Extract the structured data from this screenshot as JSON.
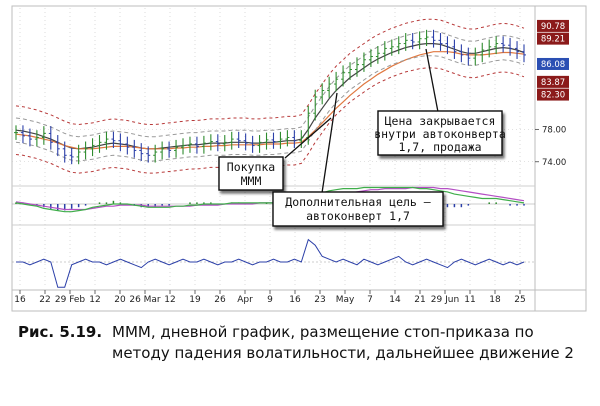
{
  "chart_data": {
    "type": "candlestick",
    "x_tick_labels": [
      "16",
      "22",
      "29 Feb",
      "12",
      "20",
      "26 Mar",
      "12",
      "19",
      "26",
      "Apr",
      "9",
      "16",
      "23",
      "May",
      "7",
      "14",
      "21",
      "29 Jun",
      "11",
      "18",
      "25"
    ],
    "price_axis": {
      "range": [
        71.5,
        92.5
      ],
      "tick_labels": [
        "78.00",
        "74.00"
      ],
      "tick_values": [
        78.0,
        74.0
      ],
      "boxed_values": [
        {
          "text": "90.78",
          "value": 90.78,
          "color": "#8b1a1a"
        },
        {
          "text": "89.21",
          "value": 89.21,
          "color": "#8b1a1a"
        },
        {
          "text": "86.08",
          "value": 86.08,
          "color": "#2b4fb3"
        },
        {
          "text": "83.87",
          "value": 83.87,
          "color": "#8b1a1a"
        },
        {
          "text": "82.30",
          "value": 82.3,
          "color": "#8b1a1a"
        }
      ]
    },
    "price_closes": [
      77.6,
      77.2,
      76.8,
      77.0,
      77.5,
      76.4,
      75.6,
      74.8,
      74.6,
      75.2,
      75.6,
      76.0,
      76.4,
      76.8,
      76.6,
      76.2,
      75.8,
      75.4,
      75.0,
      74.8,
      75.2,
      75.6,
      75.4,
      75.8,
      76.0,
      76.2,
      75.9,
      76.3,
      76.5,
      76.2,
      76.4,
      76.8,
      76.6,
      76.3,
      76.0,
      76.4,
      76.7,
      76.5,
      76.8,
      77.0,
      76.6,
      77.0,
      80.0,
      82.0,
      82.8,
      83.6,
      84.2,
      85.0,
      85.4,
      86.0,
      86.6,
      87.0,
      87.4,
      88.0,
      88.2,
      88.6,
      89.0,
      88.8,
      89.2,
      89.4,
      89.0,
      88.6,
      88.2,
      87.6,
      87.2,
      86.8,
      87.2,
      87.8,
      88.2,
      88.6,
      88.4,
      88.0,
      87.6,
      87.2
    ],
    "series": [
      {
        "name": "",
        "color": "#444444",
        "values": [
          77.9,
          77.8,
          77.6,
          77.4,
          77.1,
          76.8,
          76.4,
          76.0,
          75.7,
          75.6,
          75.7,
          75.8,
          76.0,
          76.2,
          76.3,
          76.2,
          76.1,
          75.9,
          75.7,
          75.6,
          75.6,
          75.7,
          75.8,
          75.9,
          76.0,
          76.1,
          76.1,
          76.2,
          76.3,
          76.3,
          76.3,
          76.4,
          76.4,
          76.4,
          76.3,
          76.3,
          76.4,
          76.4,
          76.5,
          76.6,
          76.6,
          76.8,
          78.0,
          79.4,
          80.6,
          81.8,
          82.8,
          83.6,
          84.4,
          85.0,
          85.6,
          86.2,
          86.7,
          87.1,
          87.5,
          87.8,
          88.1,
          88.3,
          88.5,
          88.6,
          88.6,
          88.5,
          88.2,
          87.9,
          87.6,
          87.4,
          87.4,
          87.6,
          87.8,
          88.0,
          88.1,
          88.0,
          87.8,
          87.5
        ]
      },
      {
        "name": "",
        "color": "#e07840",
        "values": [
          77.4,
          77.3,
          77.2,
          77.0,
          76.8,
          76.6,
          76.3,
          76.0,
          75.8,
          75.6,
          75.6,
          75.6,
          75.7,
          75.8,
          75.9,
          75.9,
          75.9,
          75.8,
          75.7,
          75.6,
          75.6,
          75.6,
          75.6,
          75.7,
          75.7,
          75.8,
          75.8,
          75.9,
          75.9,
          76.0,
          76.0,
          76.1,
          76.1,
          76.1,
          76.1,
          76.1,
          76.2,
          76.2,
          76.2,
          76.3,
          76.3,
          76.4,
          77.1,
          77.9,
          78.8,
          79.7,
          80.6,
          81.4,
          82.2,
          82.9,
          83.6,
          84.2,
          84.8,
          85.3,
          85.8,
          86.2,
          86.6,
          86.9,
          87.2,
          87.4,
          87.6,
          87.6,
          87.6,
          87.5,
          87.3,
          87.2,
          87.2,
          87.2,
          87.3,
          87.4,
          87.5,
          87.5,
          87.4,
          87.3
        ]
      },
      {
        "name": "",
        "color": "#9a9a9a",
        "values": [
          79.4,
          79.3,
          79.1,
          78.9,
          78.6,
          78.3,
          77.9,
          77.5,
          77.2,
          77.1,
          77.2,
          77.3,
          77.5,
          77.7,
          77.8,
          77.7,
          77.6,
          77.4,
          77.2,
          77.1,
          77.1,
          77.2,
          77.3,
          77.4,
          77.5,
          77.6,
          77.6,
          77.7,
          77.8,
          77.8,
          77.8,
          77.9,
          77.9,
          77.9,
          77.8,
          77.8,
          77.9,
          77.9,
          78.0,
          78.1,
          78.1,
          78.3,
          79.5,
          80.9,
          82.1,
          83.3,
          84.3,
          85.1,
          85.9,
          86.5,
          87.1,
          87.7,
          88.2,
          88.6,
          89.0,
          89.3,
          89.6,
          89.8,
          90.0,
          90.1,
          90.1,
          90.0,
          89.7,
          89.4,
          89.1,
          88.9,
          88.9,
          89.1,
          89.3,
          89.5,
          89.6,
          89.5,
          89.3,
          89.0
        ]
      },
      {
        "name": "",
        "color": "#9a9a9a",
        "values": [
          76.4,
          76.3,
          76.1,
          75.9,
          75.6,
          75.3,
          74.9,
          74.5,
          74.2,
          74.1,
          74.2,
          74.3,
          74.5,
          74.7,
          74.8,
          74.7,
          74.6,
          74.4,
          74.2,
          74.1,
          74.1,
          74.2,
          74.3,
          74.4,
          74.5,
          74.6,
          74.6,
          74.7,
          74.8,
          74.8,
          74.8,
          74.9,
          74.9,
          74.9,
          74.8,
          74.8,
          74.9,
          74.9,
          75.0,
          75.1,
          75.1,
          75.3,
          76.5,
          77.9,
          79.1,
          80.3,
          81.3,
          82.1,
          82.9,
          83.5,
          84.1,
          84.7,
          85.2,
          85.6,
          86.0,
          86.3,
          86.6,
          86.8,
          87.0,
          87.1,
          87.1,
          87.0,
          86.7,
          86.4,
          86.1,
          85.9,
          85.9,
          86.1,
          86.3,
          86.5,
          86.6,
          86.5,
          86.3,
          86.0
        ]
      },
      {
        "name": "",
        "color": "#b83a3a",
        "values": [
          80.9,
          80.8,
          80.6,
          80.4,
          80.1,
          79.8,
          79.4,
          79.0,
          78.7,
          78.6,
          78.7,
          78.8,
          79.0,
          79.2,
          79.3,
          79.2,
          79.1,
          78.9,
          78.7,
          78.6,
          78.6,
          78.7,
          78.8,
          78.9,
          79.0,
          79.1,
          79.1,
          79.2,
          79.3,
          79.3,
          79.3,
          79.4,
          79.4,
          79.4,
          79.3,
          79.3,
          79.4,
          79.4,
          79.5,
          79.6,
          79.6,
          79.8,
          81.0,
          82.4,
          83.6,
          84.8,
          85.8,
          86.6,
          87.4,
          88.0,
          88.6,
          89.2,
          89.7,
          90.1,
          90.5,
          90.8,
          91.1,
          91.3,
          91.5,
          91.6,
          91.6,
          91.5,
          91.2,
          90.9,
          90.6,
          90.4,
          90.4,
          90.6,
          90.8,
          91.0,
          91.1,
          91.0,
          90.8,
          90.5
        ]
      },
      {
        "name": "",
        "color": "#b83a3a",
        "values": [
          74.9,
          74.8,
          74.6,
          74.4,
          74.1,
          73.8,
          73.4,
          73.0,
          72.7,
          72.6,
          72.7,
          72.8,
          73.0,
          73.2,
          73.3,
          73.2,
          73.1,
          72.9,
          72.7,
          72.6,
          72.6,
          72.7,
          72.8,
          72.9,
          73.0,
          73.1,
          73.1,
          73.2,
          73.3,
          73.3,
          73.3,
          73.4,
          73.4,
          73.4,
          73.3,
          73.3,
          73.4,
          73.4,
          73.5,
          73.6,
          73.6,
          73.8,
          75.0,
          76.4,
          77.6,
          78.8,
          79.8,
          80.6,
          81.4,
          82.0,
          82.6,
          83.2,
          83.7,
          84.1,
          84.5,
          84.8,
          85.1,
          85.3,
          85.5,
          85.6,
          85.6,
          85.5,
          85.2,
          84.9,
          84.6,
          84.4,
          84.4,
          84.6,
          84.8,
          85.0,
          85.1,
          85.0,
          84.8,
          84.5
        ]
      }
    ],
    "macd_histogram": [
      1,
      1,
      0,
      -1,
      -2,
      -3,
      -4,
      -4,
      -3,
      -2,
      -1,
      0,
      1,
      1,
      2,
      1,
      0,
      -1,
      -2,
      -2,
      -2,
      -1,
      -1,
      0,
      0,
      1,
      1,
      1,
      1,
      0,
      0,
      1,
      1,
      0,
      0,
      0,
      1,
      1,
      1,
      1,
      1,
      2,
      4,
      5,
      6,
      6,
      5,
      5,
      4,
      4,
      3,
      3,
      3,
      2,
      2,
      2,
      2,
      1,
      1,
      0,
      -1,
      -1,
      -2,
      -2,
      -2,
      -1,
      0,
      0,
      1,
      1,
      0,
      -1,
      -1,
      -1
    ],
    "macd_line": [
      1,
      0,
      -1,
      -2,
      -4,
      -5,
      -6,
      -7,
      -7,
      -6,
      -5,
      -3,
      -2,
      -1,
      0,
      0,
      0,
      -1,
      -2,
      -3,
      -3,
      -3,
      -3,
      -2,
      -2,
      -1,
      -1,
      0,
      0,
      0,
      0,
      1,
      1,
      1,
      1,
      1,
      1,
      1,
      2,
      2,
      2,
      3,
      5,
      8,
      10,
      12,
      13,
      14,
      14,
      14,
      15,
      15,
      15,
      15,
      15,
      15,
      15,
      15,
      14,
      14,
      13,
      12,
      11,
      9,
      8,
      7,
      6,
      5,
      5,
      5,
      4,
      3,
      2,
      1
    ],
    "macd_signal": [
      2,
      1,
      0,
      -1,
      -2,
      -3,
      -4,
      -5,
      -5,
      -5,
      -5,
      -4,
      -3,
      -2,
      -2,
      -1,
      -1,
      -1,
      -1,
      -2,
      -2,
      -2,
      -2,
      -2,
      -2,
      -2,
      -1,
      -1,
      -1,
      -1,
      0,
      0,
      0,
      0,
      0,
      1,
      1,
      1,
      1,
      1,
      1,
      1,
      2,
      3,
      5,
      6,
      8,
      9,
      10,
      11,
      12,
      13,
      13,
      14,
      14,
      14,
      14,
      15,
      15,
      15,
      15,
      14,
      14,
      13,
      12,
      11,
      10,
      9,
      8,
      7,
      6,
      5,
      4,
      3
    ],
    "momentum": [
      0,
      0,
      -1,
      0,
      1,
      0,
      -9,
      -9,
      -1,
      0,
      1,
      0,
      0,
      -1,
      0,
      1,
      0,
      -1,
      -2,
      0,
      1,
      0,
      -1,
      0,
      1,
      0,
      0,
      1,
      0,
      -1,
      0,
      0,
      1,
      0,
      -1,
      0,
      0,
      1,
      0,
      0,
      1,
      0,
      8,
      6,
      2,
      1,
      0,
      1,
      0,
      -1,
      1,
      0,
      -1,
      0,
      1,
      2,
      0,
      -1,
      0,
      1,
      0,
      -1,
      -2,
      0,
      1,
      0,
      -1,
      0,
      1,
      0,
      -1,
      0,
      -1,
      0
    ],
    "callouts": [
      {
        "text": [
          "Цена закрывается",
          "внутри автоконверта",
          "1,7, продажа"
        ]
      },
      {
        "text": [
          "Покупка",
          "МММ"
        ]
      },
      {
        "text": [
          "Дополнительная цель —",
          "автоконверт 1,7"
        ]
      }
    ]
  },
  "caption": {
    "label": "Рис. 5.19.",
    "text": "МММ, дневной график, размещение стоп-приказа по методу падения волатильности, дальнейшее движение 2"
  }
}
